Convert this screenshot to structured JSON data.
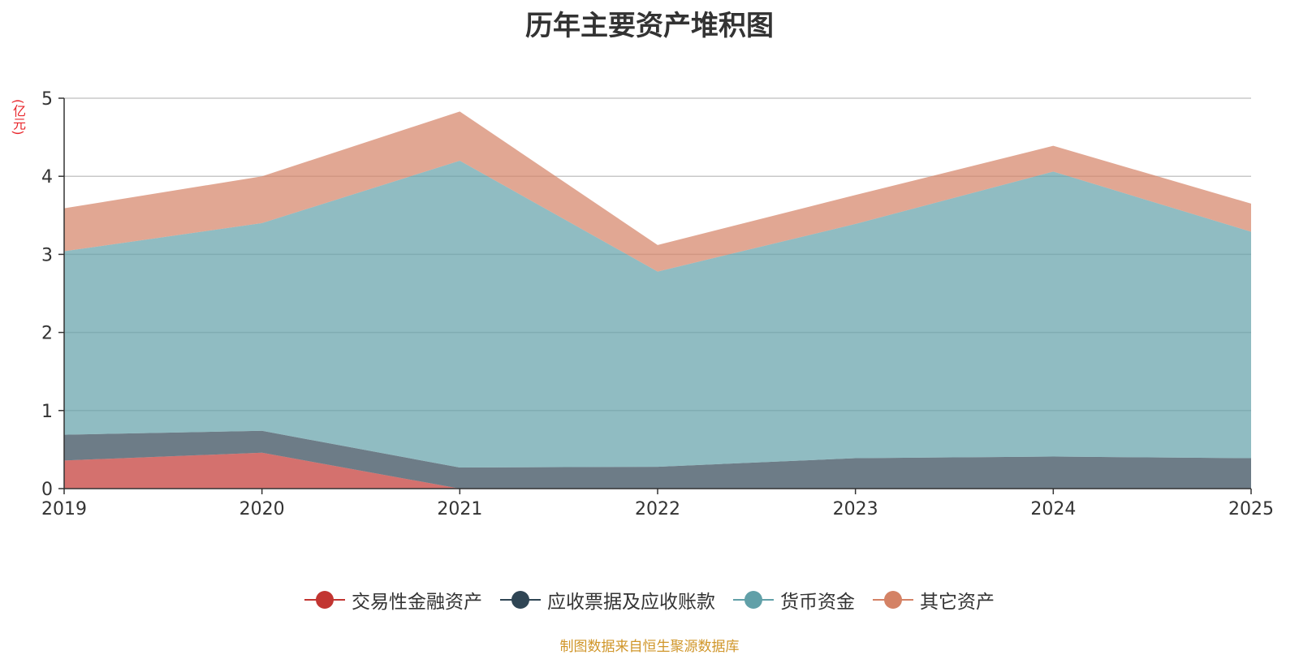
{
  "chart_data": {
    "type": "area",
    "stacked": true,
    "title": "历年主要资产堆积图",
    "ylabel": "(亿元)",
    "xlabel": "",
    "categories": [
      "2019",
      "2020",
      "2021",
      "2022",
      "2023",
      "2024",
      "2025"
    ],
    "ylim": [
      0,
      5
    ],
    "yticks": [
      "0",
      "1",
      "2",
      "3",
      "4",
      "5"
    ],
    "grid": true,
    "legend_position": "bottom",
    "series": [
      {
        "name": "交易性金融资产",
        "color": "#c23531",
        "values": [
          0.36,
          0.46,
          0.0,
          0.0,
          0.0,
          0.0,
          0.0
        ]
      },
      {
        "name": "应收票据及应收账款",
        "color": "#2f4554",
        "values": [
          0.33,
          0.28,
          0.27,
          0.28,
          0.39,
          0.41,
          0.39
        ]
      },
      {
        "name": "货币资金",
        "color": "#61a0a8",
        "values": [
          2.35,
          2.66,
          3.93,
          2.5,
          3.0,
          3.65,
          2.9
        ]
      },
      {
        "name": "其它资产",
        "color": "#d48265",
        "values": [
          0.55,
          0.6,
          0.63,
          0.34,
          0.37,
          0.33,
          0.36
        ]
      }
    ]
  },
  "source": "制图数据来自恒生聚源数据库"
}
